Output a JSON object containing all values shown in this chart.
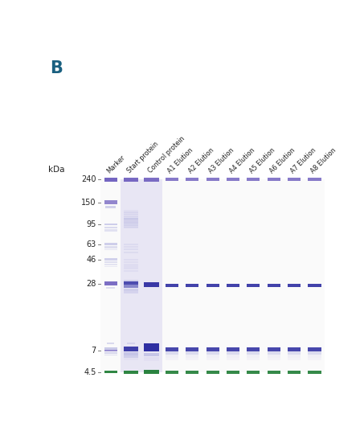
{
  "background_color": "#ffffff",
  "lane_labels": [
    "Marker",
    "Start protein",
    "Control protein",
    "A1 Elution",
    "A2 Elution",
    "A3 Elution",
    "A4 Elution",
    "A5 Elution",
    "A6 Elution",
    "A7 Elution",
    "A8 Elution"
  ],
  "kda_marks": [
    240,
    150,
    95,
    63,
    46,
    28,
    7,
    4.5
  ],
  "purple": "#6655bb",
  "dark_blue": "#1a1a99",
  "green": "#1a7a30",
  "light_purple": "#aaaadd",
  "very_light_purple": "#d8d4ee",
  "ctrl_highlight": "#e8e6f4"
}
